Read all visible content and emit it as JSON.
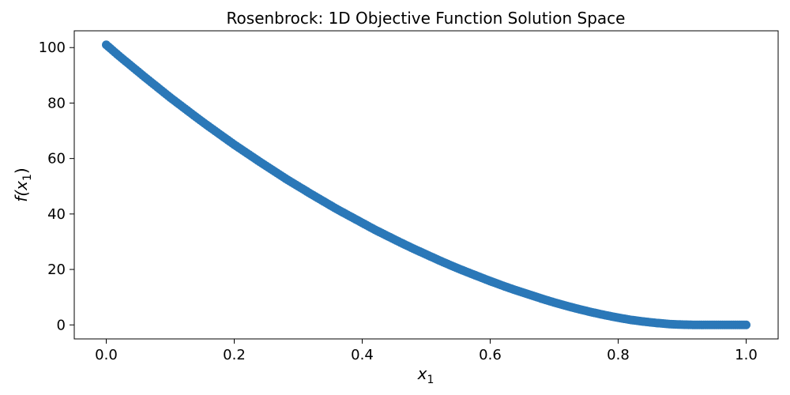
{
  "chart_data": {
    "type": "scatter",
    "title": "Rosenbrock: 1D Objective Function Solution Space",
    "xlabel": "x",
    "xlabel_sub": "1",
    "ylabel_prefix": "f(x",
    "ylabel_sub": "1",
    "ylabel_suffix": ")",
    "xlim": [
      -0.05,
      1.05
    ],
    "ylim": [
      -5.05,
      106.05
    ],
    "xticks": [
      0.0,
      0.2,
      0.4,
      0.6,
      0.8,
      1.0
    ],
    "xtick_labels": [
      "0.0",
      "0.2",
      "0.4",
      "0.6",
      "0.8",
      "1.0"
    ],
    "yticks": [
      0,
      20,
      40,
      60,
      80,
      100
    ],
    "ytick_labels": [
      "0",
      "20",
      "40",
      "60",
      "80",
      "100"
    ],
    "grid": false,
    "marker_color": "#2b78b8",
    "x": [
      0.0,
      0.02,
      0.04,
      0.06,
      0.08,
      0.1,
      0.12,
      0.14,
      0.16,
      0.18,
      0.2,
      0.22,
      0.24,
      0.26,
      0.28,
      0.3,
      0.32,
      0.34,
      0.36,
      0.38,
      0.4,
      0.42,
      0.44,
      0.46,
      0.48,
      0.5,
      0.52,
      0.54,
      0.56,
      0.58,
      0.6,
      0.62,
      0.64,
      0.66,
      0.68,
      0.7,
      0.72,
      0.74,
      0.76,
      0.78,
      0.8,
      0.82,
      0.84,
      0.86,
      0.88,
      0.9,
      0.92,
      0.94,
      0.96,
      0.98,
      1.0
    ],
    "y": [
      101.0,
      97.0,
      93.2,
      89.4,
      85.7,
      82.0,
      78.5,
      75.0,
      71.6,
      68.3,
      65.0,
      61.9,
      58.8,
      55.8,
      52.8,
      50.0,
      47.2,
      44.5,
      41.8,
      39.3,
      36.8,
      34.3,
      32.0,
      29.7,
      27.5,
      25.4,
      23.3,
      21.3,
      19.4,
      17.6,
      15.8,
      14.1,
      12.5,
      11.0,
      9.5,
      8.1,
      6.8,
      5.6,
      4.5,
      3.5,
      2.6,
      1.8,
      1.2,
      0.7,
      0.3,
      0.1,
      0.0,
      0.0,
      0.0,
      0.0,
      0.0
    ]
  }
}
